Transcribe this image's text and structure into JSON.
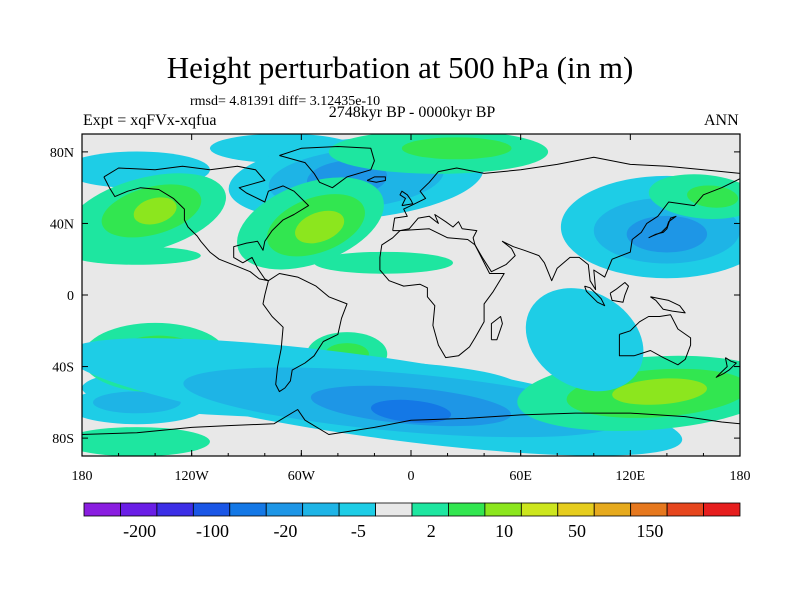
{
  "header": {
    "title": "Height perturbation at 500 hPa (in m)",
    "stats": "rmsd= 4.81391 diff= 3.12435e-10",
    "period": "2748kyr BP - 0000kyr BP",
    "experiment": "Expt = xqFVx-xqfua",
    "season": "ANN"
  },
  "chart_data": {
    "type": "heatmap",
    "title": "Height perturbation at 500 hPa (in m)",
    "xlabel": "",
    "ylabel": "",
    "xlim": [
      -180,
      180
    ],
    "ylim": [
      -90,
      90
    ],
    "x_ticks": [
      {
        "value": -180,
        "label": "180"
      },
      {
        "value": -120,
        "label": "120W"
      },
      {
        "value": -60,
        "label": "60W"
      },
      {
        "value": 0,
        "label": "0"
      },
      {
        "value": 60,
        "label": "60E"
      },
      {
        "value": 120,
        "label": "120E"
      },
      {
        "value": 180,
        "label": "180"
      }
    ],
    "y_ticks": [
      {
        "value": 80,
        "label": "80N"
      },
      {
        "value": 40,
        "label": "40N"
      },
      {
        "value": 0,
        "label": "0"
      },
      {
        "value": -40,
        "label": "40S"
      },
      {
        "value": -80,
        "label": "80S"
      }
    ],
    "colorbar": {
      "colors": [
        "#8a1ee0",
        "#6a1ee6",
        "#3c2ee6",
        "#1a56e6",
        "#1478e6",
        "#1e96e6",
        "#1eb4e6",
        "#1ecde6",
        "#e8e8e8",
        "#1ee6a0",
        "#32e650",
        "#8ce61e",
        "#cde61e",
        "#e6cd1e",
        "#e6aa1e",
        "#e6781e",
        "#e6461e",
        "#e61e1e"
      ],
      "labels": [
        "-200",
        "-100",
        "-20",
        "-5",
        "2",
        "10",
        "50",
        "150"
      ]
    },
    "contour_regions": [
      {
        "name": "north-atlantic-low",
        "lon": -30,
        "lat": 65,
        "value": -20
      },
      {
        "name": "north-pacific-high",
        "lon": -145,
        "lat": 45,
        "value": 10
      },
      {
        "name": "western-atlantic-high",
        "lon": -55,
        "lat": 40,
        "value": 10
      },
      {
        "name": "east-asia-low",
        "lon": 140,
        "lat": 38,
        "value": -20
      },
      {
        "name": "siberia-high",
        "lon": 160,
        "lat": 55,
        "value": 5
      },
      {
        "name": "arctic-high",
        "lon": 15,
        "lat": 80,
        "value": 5
      },
      {
        "name": "south-pacific-high",
        "lon": -140,
        "lat": -35,
        "value": 10
      },
      {
        "name": "south-atlantic-high",
        "lon": -35,
        "lat": -33,
        "value": 5
      },
      {
        "name": "southern-ocean-low",
        "lon": 0,
        "lat": -62,
        "value": -20
      },
      {
        "name": "southern-indian-high",
        "lon": 130,
        "lat": -55,
        "value": 10
      },
      {
        "name": "australia-low",
        "lon": 95,
        "lat": -25,
        "value": -5
      }
    ]
  }
}
